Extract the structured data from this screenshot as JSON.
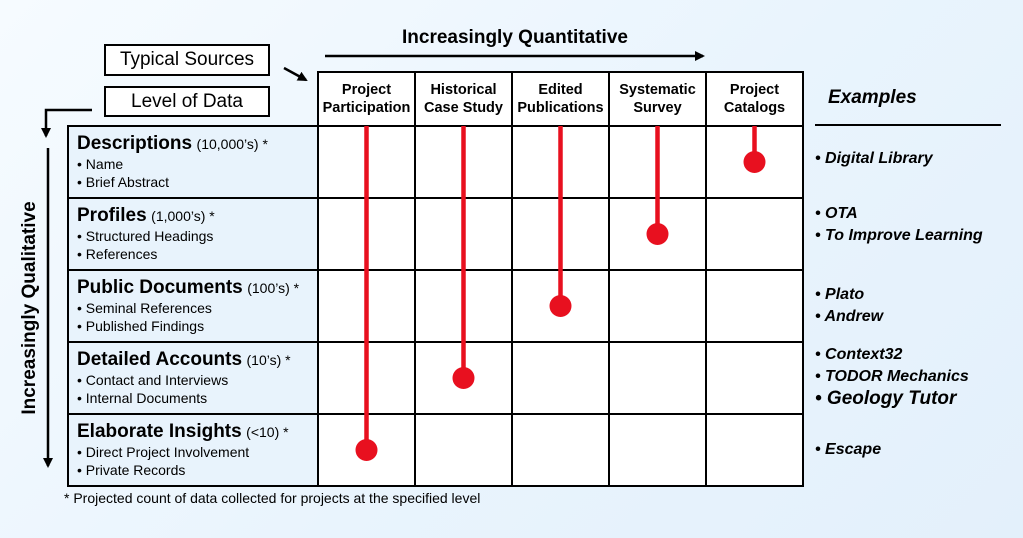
{
  "top_axis": {
    "label": "Increasingly Quantitative"
  },
  "side_axis": {
    "label": "Increasingly Qualitative"
  },
  "legend": {
    "sources_label": "Typical Sources",
    "levels_label": "Level of Data"
  },
  "columns": [
    {
      "line1": "Project",
      "line2": "Participation"
    },
    {
      "line1": "Historical",
      "line2": "Case Study"
    },
    {
      "line1": "Edited",
      "line2": "Publications"
    },
    {
      "line1": "Systematic",
      "line2": "Survey"
    },
    {
      "line1": "Project",
      "line2": "Catalogs"
    }
  ],
  "rows": [
    {
      "name": "Descriptions",
      "count": "(10,000’s) *",
      "items": [
        "• Name",
        "• Brief Abstract"
      ]
    },
    {
      "name": "Profiles",
      "count": "(1,000’s) *",
      "items": [
        "• Structured Headings",
        "• References"
      ]
    },
    {
      "name": "Public Documents",
      "count": "(100’s) *",
      "items": [
        "• Seminal References",
        "• Published Findings"
      ]
    },
    {
      "name": "Detailed Accounts",
      "count": "(10’s) *",
      "items": [
        "• Contact and Interviews",
        "• Internal Documents"
      ]
    },
    {
      "name": "Elaborate Insights",
      "count": "(<10) *",
      "items": [
        "• Direct Project Involvement",
        "• Private Records"
      ]
    }
  ],
  "examples": {
    "title": "Examples",
    "groups": [
      [
        "• Digital Library"
      ],
      [
        "• OTA",
        "• To Improve Learning"
      ],
      [
        "• Plato",
        "• Andrew"
      ],
      [
        "• Context32",
        "• TODOR Mechanics",
        "• Geology Tutor"
      ],
      [
        "• Escape"
      ]
    ]
  },
  "source_reach": [
    {
      "source": "Project Participation",
      "deepest_level": "Elaborate Insights"
    },
    {
      "source": "Historical Case Study",
      "deepest_level": "Detailed Accounts"
    },
    {
      "source": "Edited Publications",
      "deepest_level": "Public Documents"
    },
    {
      "source": "Systematic Survey",
      "deepest_level": "Profiles"
    },
    {
      "source": "Project Catalogs",
      "deepest_level": "Descriptions"
    }
  ],
  "colors": {
    "marker": "#e8101f",
    "row_header_bg": "#e8f3fc",
    "background": "#eef6fd"
  },
  "footnote": "* Projected count of data collected for projects at the specified level"
}
